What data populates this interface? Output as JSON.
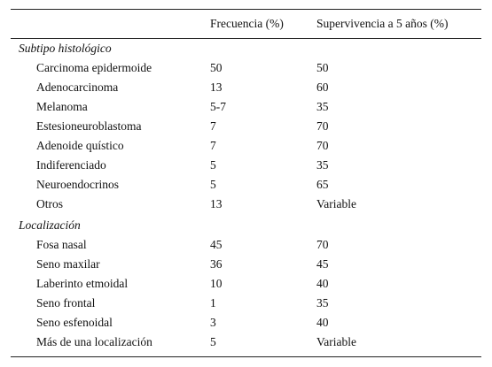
{
  "table": {
    "header": [
      "Frecuencia (%)",
      "Supervivencia a 5 años (%)"
    ],
    "sections": [
      {
        "title": "Subtipo histológico",
        "rows": [
          [
            "Carcinoma epidermoide",
            "50",
            "50"
          ],
          [
            "Adenocarcinoma",
            "13",
            "60"
          ],
          [
            "Melanoma",
            "5-7",
            "35"
          ],
          [
            "Estesioneuroblastoma",
            "7",
            "70"
          ],
          [
            "Adenoide quístico",
            "7",
            "70"
          ],
          [
            "Indiferenciado",
            "5",
            "35"
          ],
          [
            "Neuroendocrinos",
            "5",
            "65"
          ],
          [
            "Otros",
            "13",
            "Variable"
          ]
        ]
      },
      {
        "title": "Localización",
        "rows": [
          [
            "Fosa nasal",
            "45",
            "70"
          ],
          [
            "Seno maxilar",
            "36",
            "45"
          ],
          [
            "Laberinto etmoidal",
            "10",
            "40"
          ],
          [
            "Seno frontal",
            "1",
            "35"
          ],
          [
            "Seno esfenoidal",
            "3",
            "40"
          ],
          [
            "Más de una localización",
            "5",
            "Variable"
          ]
        ]
      }
    ]
  }
}
